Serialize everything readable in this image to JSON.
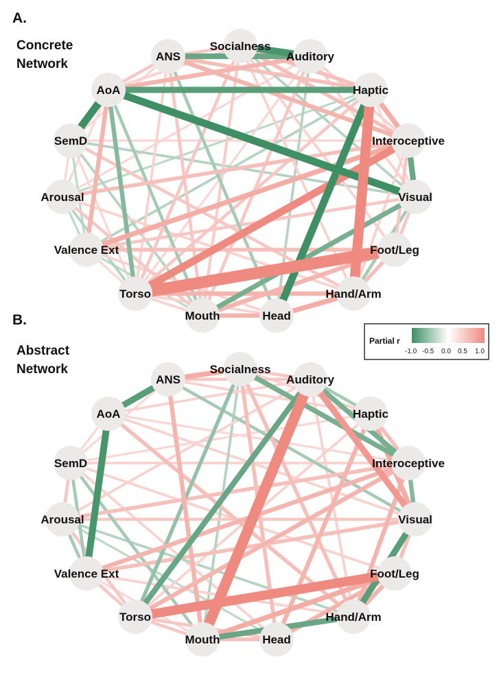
{
  "nodes": [
    "Socialness",
    "Auditory",
    "Haptic",
    "Interoceptive",
    "Visual",
    "Foot/Leg",
    "Hand/Arm",
    "Head",
    "Mouth",
    "Torso",
    "Valence Ext",
    "Arousal",
    "SemD",
    "AoA",
    "ANS"
  ],
  "panels": [
    {
      "id": "concrete",
      "letter": "A.",
      "title_lines": [
        "Concrete",
        "Network"
      ],
      "edges": [
        [
          "Torso",
          "Foot/Leg",
          0.9
        ],
        [
          "Haptic",
          "Hand/Arm",
          0.75
        ],
        [
          "Torso",
          "Interoceptive",
          0.55
        ],
        [
          "Valence Ext",
          "Interoceptive",
          0.35
        ],
        [
          "Arousal",
          "Interoceptive",
          0.25
        ],
        [
          "AoA",
          "Haptic",
          -0.45
        ],
        [
          "AoA",
          "Visual",
          -0.55
        ],
        [
          "AoA",
          "SemD",
          -0.55
        ],
        [
          "ANS",
          "Auditory",
          -0.4
        ],
        [
          "Socialness",
          "Auditory",
          -0.5
        ],
        [
          "Head",
          "Haptic",
          -0.55
        ],
        [
          "Mouth",
          "Visual",
          -0.35
        ],
        [
          "Interoceptive",
          "Visual",
          -0.4
        ],
        [
          "Haptic",
          "Interoceptive",
          0.35
        ],
        [
          "Torso",
          "AoA",
          -0.3
        ],
        [
          "Valence Ext",
          "AoA",
          0.3
        ],
        [
          "Mouth",
          "Foot/Leg",
          0.3
        ],
        [
          "Mouth",
          "Head",
          0.3
        ],
        [
          "Head",
          "Hand/Arm",
          0.35
        ],
        [
          "Torso",
          "Hand/Arm",
          0.3
        ],
        [
          "AoA",
          "Auditory",
          0.3
        ],
        [
          "ANS",
          "Haptic",
          0.25
        ],
        [
          "Socialness",
          "Haptic",
          0.25
        ],
        [
          "ANS",
          "Interoceptive",
          0.3
        ],
        [
          "Socialness",
          "Interoceptive",
          0.25
        ],
        [
          "Valence Ext",
          "Foot/Leg",
          0.25
        ],
        [
          "Valence Ext",
          "Visual",
          0.2
        ],
        [
          "Socialness",
          "Torso",
          0.2
        ],
        [
          "ANS",
          "Mouth",
          0.2
        ],
        [
          "Auditory",
          "Mouth",
          0.2
        ],
        [
          "Haptic",
          "Torso",
          0.2
        ],
        [
          "SemD",
          "Hand/Arm",
          0.2
        ],
        [
          "Arousal",
          "Mouth",
          0.2
        ],
        [
          "Visual",
          "Hand/Arm",
          -0.2
        ],
        [
          "Foot/Leg",
          "Hand/Arm",
          0.25
        ],
        [
          "Arousal",
          "Torso",
          -0.15
        ],
        [
          "SemD",
          "Visual",
          -0.15
        ],
        [
          "Valence Ext",
          "Haptic",
          -0.15
        ],
        [
          "ANS",
          "Head",
          -0.2
        ],
        [
          "Socialness",
          "Foot/Leg",
          0.15
        ],
        [
          "SemD",
          "Mouth",
          -0.15
        ],
        [
          "Torso",
          "Head",
          0.15
        ],
        [
          "Interoceptive",
          "Foot/Leg",
          0.2
        ],
        [
          "Visual",
          "Foot/Leg",
          0.2
        ],
        [
          "Arousal",
          "Hand/Arm",
          0.15
        ],
        [
          "AoA",
          "Mouth",
          -0.2
        ],
        [
          "Socialness",
          "Visual",
          -0.15
        ],
        [
          "Valence Ext",
          "Head",
          0.15
        ],
        [
          "Auditory",
          "Head",
          -0.15
        ],
        [
          "SemD",
          "Interoceptive",
          0.12
        ],
        [
          "Arousal",
          "Haptic",
          -0.12
        ],
        [
          "Arousal",
          "Auditory",
          0.12
        ],
        [
          "Socialness",
          "Hand/Arm",
          0.15
        ],
        [
          "ANS",
          "Torso",
          0.15
        ],
        [
          "Socialness",
          "Mouth",
          0.18
        ],
        [
          "Auditory",
          "Torso",
          0.12
        ],
        [
          "SemD",
          "Torso",
          0.12
        ],
        [
          "Arousal",
          "AoA",
          0.12
        ],
        [
          "Auditory",
          "Visual",
          0.15
        ],
        [
          "Haptic",
          "Visual",
          0.12
        ],
        [
          "Auditory",
          "Interoceptive",
          0.15
        ],
        [
          "Interoceptive",
          "Hand/Arm",
          0.15
        ],
        [
          "Torso",
          "Mouth",
          0.15
        ],
        [
          "Valence Ext",
          "Torso",
          0.12
        ],
        [
          "Valence Ext",
          "Mouth",
          -0.12
        ],
        [
          "Arousal",
          "Valence Ext",
          -0.12
        ],
        [
          "SemD",
          "Arousal",
          0.12
        ],
        [
          "AoA",
          "ANS",
          0.2
        ],
        [
          "Socialness",
          "ANS",
          0.2
        ],
        [
          "Socialness",
          "AoA",
          0.15
        ],
        [
          "SemD",
          "ANS",
          0.12
        ],
        [
          "SemD",
          "Valence Ext",
          -0.12
        ]
      ]
    },
    {
      "id": "abstract",
      "letter": "B.",
      "title_lines": [
        "Abstract",
        "Network"
      ],
      "edges": [
        [
          "Auditory",
          "Mouth",
          0.8
        ],
        [
          "Torso",
          "Foot/Leg",
          0.7
        ],
        [
          "Auditory",
          "Visual",
          0.45
        ],
        [
          "Haptic",
          "Visual",
          0.35
        ],
        [
          "Haptic",
          "Head",
          0.3
        ],
        [
          "AoA",
          "Valence Ext",
          -0.5
        ],
        [
          "ANS",
          "AoA",
          -0.45
        ],
        [
          "Socialness",
          "ANS",
          0.35
        ],
        [
          "Auditory",
          "Torso",
          -0.4
        ],
        [
          "Mouth",
          "Foot/Leg",
          0.35
        ],
        [
          "Head",
          "Foot/Leg",
          0.3
        ],
        [
          "Mouth",
          "Hand/Arm",
          -0.4
        ],
        [
          "Visual",
          "Hand/Arm",
          -0.45
        ],
        [
          "Interoceptive",
          "Hand/Arm",
          0.3
        ],
        [
          "Socialness",
          "Interoceptive",
          -0.35
        ],
        [
          "Auditory",
          "Interoceptive",
          -0.35
        ],
        [
          "Arousal",
          "Interoceptive",
          0.25
        ],
        [
          "Valence Ext",
          "Interoceptive",
          0.3
        ],
        [
          "Torso",
          "Interoceptive",
          0.3
        ],
        [
          "Valence Ext",
          "Visual",
          0.25
        ],
        [
          "Arousal",
          "Visual",
          0.2
        ],
        [
          "Socialness",
          "Head",
          0.25
        ],
        [
          "AoA",
          "Hand/Arm",
          0.25
        ],
        [
          "ANS",
          "Mouth",
          0.3
        ],
        [
          "Socialness",
          "Hand/Arm",
          0.25
        ],
        [
          "Socialness",
          "Torso",
          -0.25
        ],
        [
          "SemD",
          "Mouth",
          -0.2
        ],
        [
          "ANS",
          "Visual",
          -0.2
        ],
        [
          "Haptic",
          "Interoceptive",
          0.25
        ],
        [
          "Interoceptive",
          "Visual",
          -0.3
        ],
        [
          "Visual",
          "Foot/Leg",
          0.25
        ],
        [
          "Foot/Leg",
          "Hand/Arm",
          0.3
        ],
        [
          "Torso",
          "Head",
          0.2
        ],
        [
          "Mouth",
          "Head",
          0.25
        ],
        [
          "Torso",
          "Mouth",
          0.2
        ],
        [
          "Arousal",
          "Torso",
          0.2
        ],
        [
          "SemD",
          "Head",
          0.15
        ],
        [
          "AoA",
          "Visual",
          0.15
        ],
        [
          "SemD",
          "Interoceptive",
          0.15
        ],
        [
          "Arousal",
          "Hand/Arm",
          -0.15
        ],
        [
          "SemD",
          "Foot/Leg",
          0.15
        ],
        [
          "Haptic",
          "Torso",
          0.15
        ],
        [
          "Socialness",
          "Mouth",
          -0.15
        ],
        [
          "AoA",
          "Auditory",
          0.15
        ],
        [
          "Arousal",
          "Auditory",
          0.15
        ],
        [
          "Valence Ext",
          "Hand/Arm",
          0.15
        ],
        [
          "ANS",
          "Haptic",
          0.15
        ],
        [
          "Socialness",
          "Haptic",
          0.15
        ],
        [
          "SemD",
          "Haptic",
          0.12
        ],
        [
          "AoA",
          "Interoceptive",
          0.12
        ],
        [
          "Valence Ext",
          "Mouth",
          0.12
        ],
        [
          "Arousal",
          "Head",
          -0.12
        ],
        [
          "Auditory",
          "Haptic",
          -0.2
        ],
        [
          "Auditory",
          "Hand/Arm",
          0.15
        ],
        [
          "Valence Ext",
          "Torso",
          0.2
        ],
        [
          "Arousal",
          "Valence Ext",
          -0.2
        ],
        [
          "SemD",
          "Arousal",
          0.2
        ],
        [
          "AoA",
          "SemD",
          0.12
        ],
        [
          "ANS",
          "Auditory",
          0.2
        ],
        [
          "Socialness",
          "Auditory",
          0.2
        ],
        [
          "ANS",
          "SemD",
          0.12
        ],
        [
          "SemD",
          "Valence Ext",
          -0.2
        ]
      ]
    }
  ],
  "legend": {
    "title": "Partial r",
    "ticks": [
      "-1.0",
      "-0.5",
      "0.0",
      "0.5",
      "1.0"
    ],
    "colors": {
      "negative": "#3f8f64",
      "zero": "#ffffff",
      "positive": "#ef8a80"
    }
  },
  "node_fill": "#ece9e9"
}
